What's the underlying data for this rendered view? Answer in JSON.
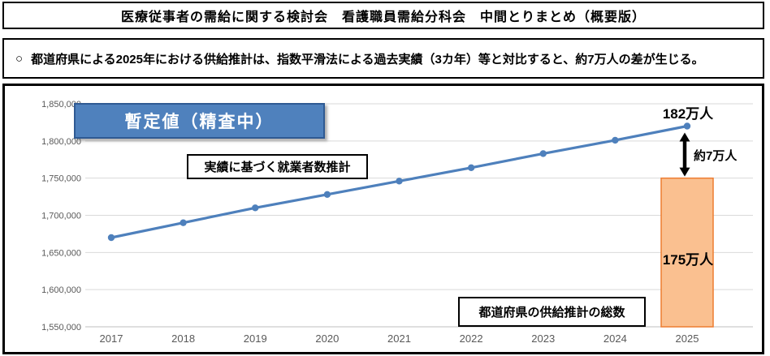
{
  "header": {
    "title": "医療従事者の需給に関する検討会　看護職員需給分科会　中間とりまとめ（概要版）"
  },
  "statement": {
    "bullet": "○",
    "text": "都道府県による2025年における供給推計は、指数平滑法による過去実績（3カ年）等と対比すると、約7万人の差が生じる。"
  },
  "chart": {
    "provisional_label": "暫定値（精査中）",
    "line_label": "実績に基づく就業者数推計",
    "bar_label": "都道府県の供給推計の総数",
    "annotation_line_end": "182万人",
    "annotation_gap": "約7万人",
    "annotation_bar": "175万人",
    "colors": {
      "line": "#4E80BC",
      "bar_fill": "#FAC090",
      "bar_border": "#ED7D31",
      "gridline": "#D9D9D9",
      "axis_line": "#BFBFBF",
      "axis_text": "#595959",
      "provisional_fill": "#4F81BD",
      "arrow": "#000000"
    }
  },
  "chart_data": {
    "type": "line",
    "x": [
      "2017",
      "2018",
      "2019",
      "2020",
      "2021",
      "2022",
      "2023",
      "2024",
      "2025"
    ],
    "series": [
      {
        "name": "実績に基づく就業者数推計",
        "type": "line",
        "color": "#4E80BC",
        "values": [
          1670000,
          1690000,
          1710000,
          1728000,
          1746000,
          1764000,
          1783000,
          1801000,
          1820000
        ]
      },
      {
        "name": "都道府県の供給推計の総数",
        "type": "bar",
        "color": "#FAC090",
        "border_color": "#ED7D31",
        "x": "2025",
        "value": 1750000
      }
    ],
    "ylim": [
      1550000,
      1850000
    ],
    "ytick_step": 50000,
    "grid": true,
    "legend": "none",
    "annotations": [
      {
        "text": "182万人",
        "target": "line end 2025 = 1,820,000"
      },
      {
        "text": "約7万人",
        "target": "gap arrow between 1,820,000 and 1,750,000"
      },
      {
        "text": "175万人",
        "target": "bar 2025 = 1,750,000"
      }
    ]
  }
}
